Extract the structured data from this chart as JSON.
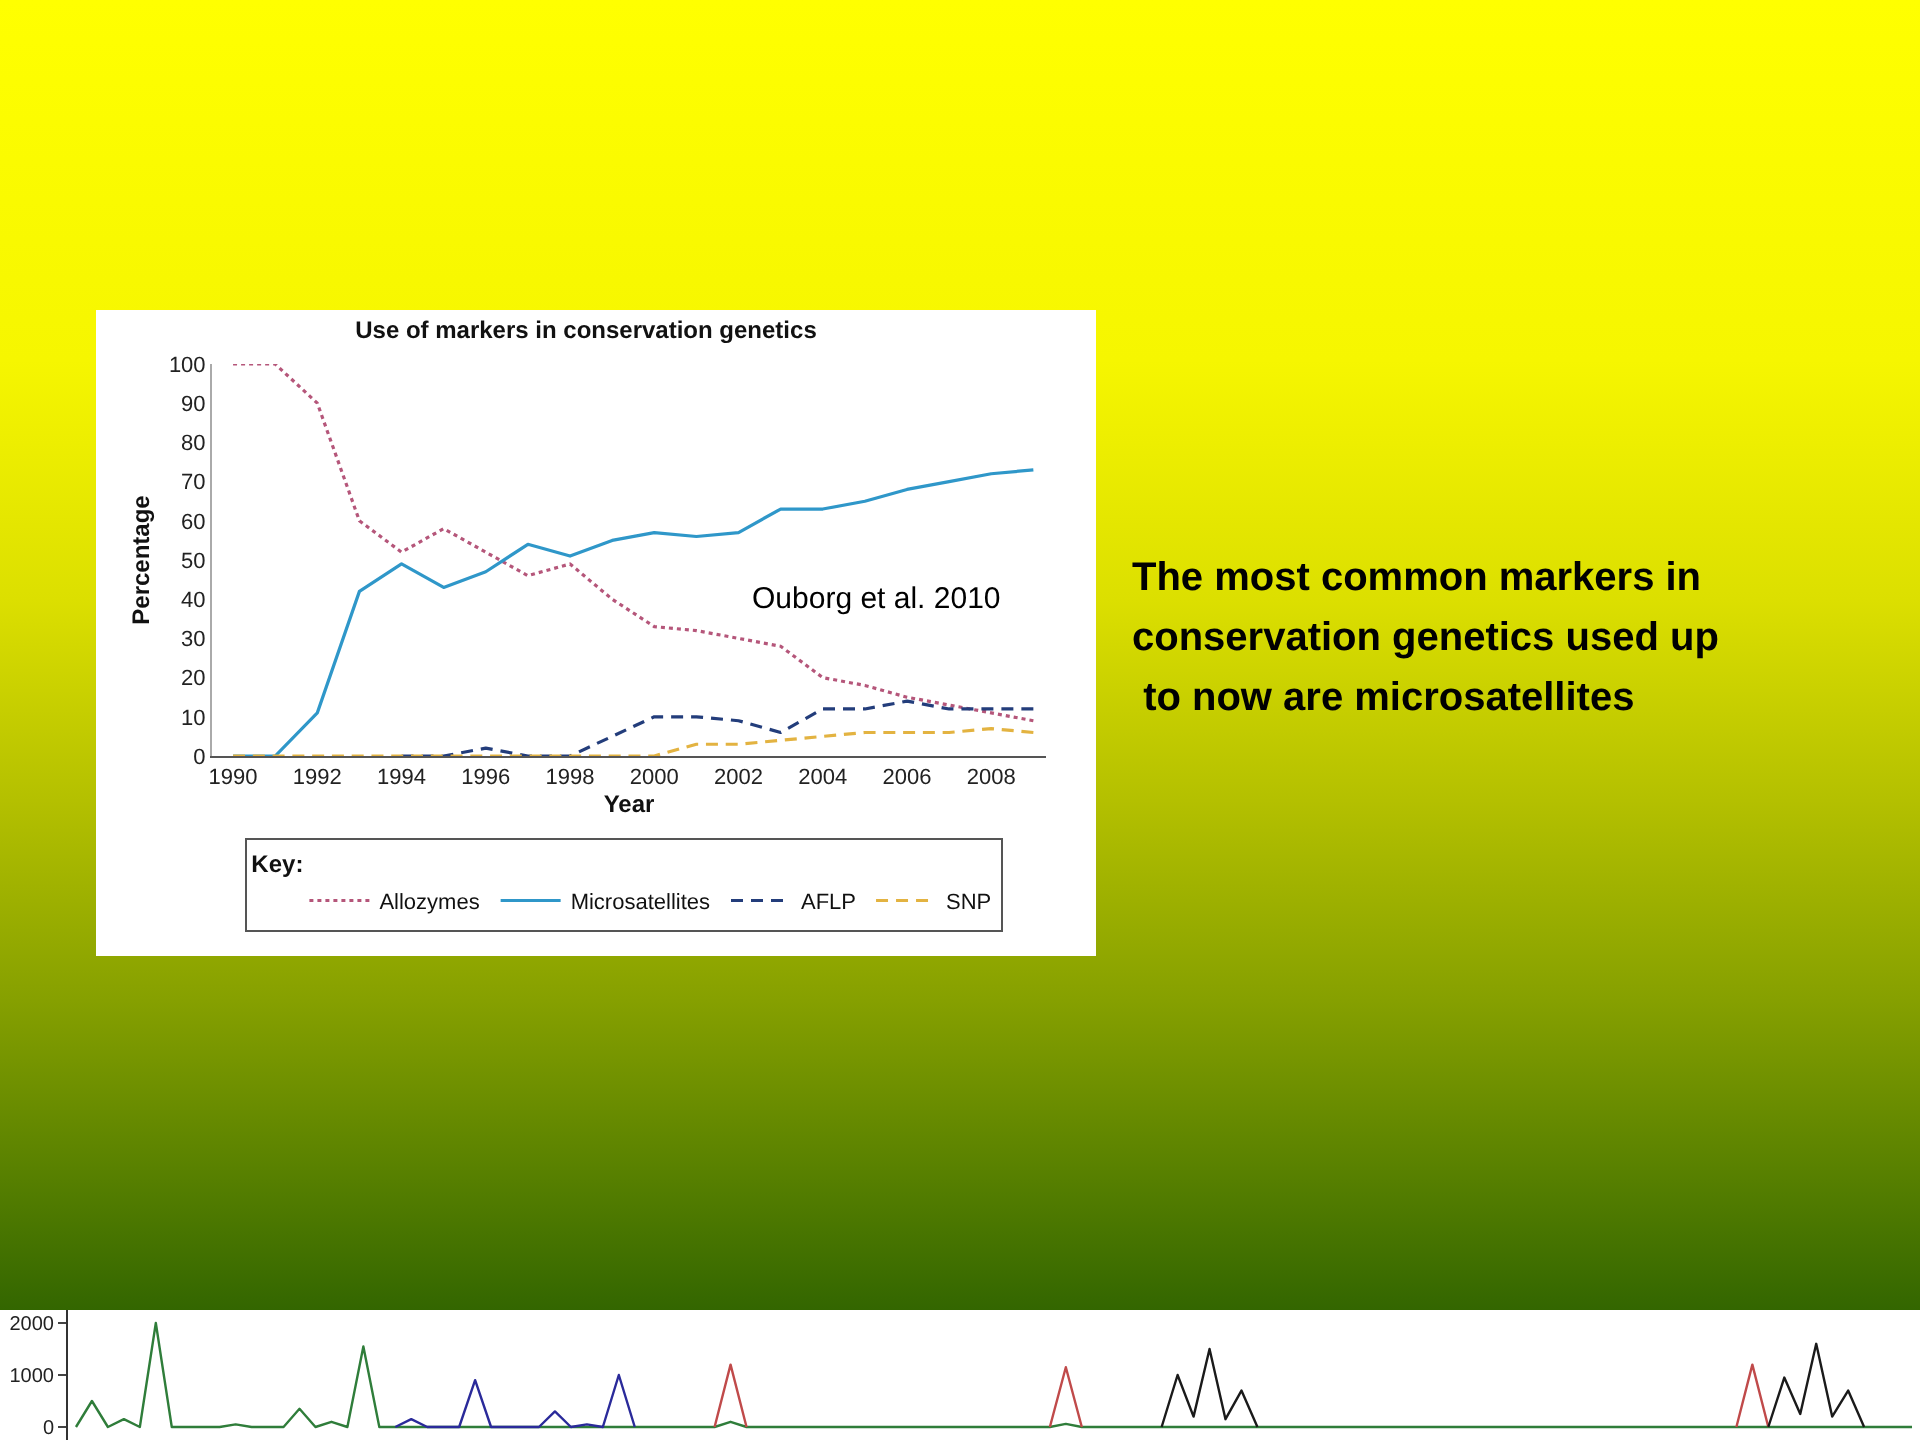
{
  "chart_data": [
    {
      "type": "line",
      "title": "Use of markers in conservation genetics",
      "xlabel": "Year",
      "ylabel": "Percentage",
      "legend_title": "Key:",
      "legend": "bottom",
      "x": [
        1990,
        1991,
        1992,
        1993,
        1994,
        1995,
        1996,
        1997,
        1998,
        1999,
        2000,
        2001,
        2002,
        2003,
        2004,
        2005,
        2006,
        2007,
        2008,
        2009
      ],
      "xlim": [
        1989.5,
        2009.3
      ],
      "xticks": [
        1990,
        1992,
        1994,
        1996,
        1998,
        2000,
        2002,
        2004,
        2006,
        2008
      ],
      "ylim": [
        0,
        100
      ],
      "yticks": [
        0,
        10,
        20,
        30,
        40,
        50,
        60,
        70,
        80,
        90,
        100
      ],
      "series": [
        {
          "name": "Allozymes",
          "color": "#b5567a",
          "line_style": "dotted",
          "values": [
            100,
            100,
            90,
            60,
            52,
            58,
            52,
            46,
            49,
            40,
            33,
            32,
            30,
            28,
            20,
            18,
            15,
            13,
            11,
            9
          ]
        },
        {
          "name": "Microsatellites",
          "color": "#2f97c9",
          "line_style": "solid",
          "values": [
            0,
            0,
            11,
            42,
            49,
            43,
            47,
            54,
            51,
            55,
            57,
            56,
            57,
            63,
            63,
            65,
            68,
            70,
            72,
            73
          ]
        },
        {
          "name": "AFLP",
          "color": "#233d7b",
          "line_style": "dashed",
          "values": [
            null,
            null,
            null,
            null,
            0,
            0,
            2,
            0,
            0,
            5,
            10,
            10,
            9,
            6,
            12,
            12,
            14,
            12,
            12,
            12
          ]
        },
        {
          "name": "SNP",
          "color": "#e3b341",
          "line_style": "dashed",
          "values": [
            0,
            0,
            0,
            0,
            0,
            0,
            0,
            0,
            0,
            0,
            0,
            3,
            3,
            4,
            5,
            6,
            6,
            6,
            7,
            6
          ]
        }
      ],
      "annotations": [
        "Ouborg et al. 2010",
        "The most common markers in\nconservation genetics used up\n to now are microsatellites"
      ]
    },
    {
      "type": "line",
      "tick_labels": "y",
      "line_style": "solid",
      "ylim": [
        -250,
        2250
      ],
      "yticks": [
        0,
        1000,
        2000
      ],
      "categories": [
        null,
        null,
        null,
        null,
        null,
        null,
        null,
        null,
        null,
        null,
        null,
        null,
        null,
        null,
        null,
        null,
        null,
        null,
        null,
        null,
        null,
        null,
        null,
        null,
        null,
        null,
        null,
        null,
        null,
        null,
        null,
        null,
        null,
        null,
        null,
        null,
        null,
        null,
        null,
        null,
        null,
        null,
        null,
        null,
        null,
        null,
        null,
        null,
        null,
        null,
        null,
        null,
        null,
        null,
        null,
        null,
        null,
        null,
        null,
        null,
        null,
        null,
        null,
        null,
        null,
        null,
        null,
        null,
        null,
        null,
        null,
        null,
        null,
        null,
        null,
        null,
        null,
        null,
        null,
        null,
        null,
        null,
        null,
        null,
        null,
        null,
        null,
        null,
        null,
        null,
        null,
        null,
        null,
        null,
        null,
        null,
        null,
        null,
        null,
        null,
        null,
        null,
        null,
        null,
        null,
        null,
        null,
        null,
        null,
        null,
        null,
        null,
        null,
        null,
        null,
        null
      ],
      "series": [
        {
          "color": "#2f7d3a",
          "values": [
            0,
            500,
            0,
            150,
            0,
            2000,
            0,
            0,
            0,
            0,
            50,
            0,
            0,
            0,
            350,
            0,
            100,
            0,
            1550,
            0,
            0,
            0,
            0,
            0,
            0,
            0,
            0,
            0,
            0,
            0,
            0,
            0,
            0,
            0,
            0,
            0,
            0,
            0,
            0,
            0,
            0,
            100,
            0,
            0,
            0,
            0,
            0,
            0,
            0,
            0,
            0,
            0,
            0,
            0,
            0,
            0,
            0,
            0,
            0,
            0,
            0,
            0,
            60,
            0,
            0,
            0,
            0,
            0,
            0,
            0,
            0,
            0,
            0,
            0,
            0,
            0,
            0,
            0,
            0,
            0,
            0,
            0,
            0,
            0,
            0,
            0,
            0,
            0,
            0,
            0,
            0,
            0,
            0,
            0,
            0,
            0,
            0,
            0,
            0,
            0,
            0,
            0,
            0,
            0,
            0,
            0,
            0,
            0,
            0,
            0,
            0,
            0,
            0,
            0,
            0,
            0
          ]
        },
        {
          "color": "#2a2a9a",
          "values": [
            null,
            null,
            null,
            null,
            null,
            null,
            null,
            null,
            null,
            null,
            null,
            null,
            null,
            null,
            null,
            null,
            null,
            null,
            null,
            null,
            0,
            150,
            0,
            0,
            0,
            900,
            0,
            0,
            0,
            0,
            300,
            0,
            50,
            0,
            1000,
            0,
            null,
            null,
            null,
            null,
            null,
            null,
            null,
            null,
            null,
            null,
            null,
            null,
            null,
            null,
            null,
            null,
            null,
            null,
            null,
            null,
            null,
            null,
            null,
            null,
            null,
            null,
            null,
            null,
            null,
            null,
            null,
            null,
            null,
            null,
            null,
            null,
            null,
            null,
            null,
            null,
            null,
            null,
            null,
            null,
            null,
            null,
            null,
            null,
            null,
            null,
            null,
            null,
            null,
            null,
            null,
            null,
            null,
            null,
            null,
            null,
            null,
            null,
            null,
            null,
            null,
            null,
            null,
            null,
            null,
            null,
            null,
            null,
            null,
            null,
            null,
            null,
            null,
            null,
            null,
            null
          ]
        },
        {
          "color": "#c04a4a",
          "values": [
            null,
            null,
            null,
            null,
            null,
            null,
            null,
            null,
            null,
            null,
            null,
            null,
            null,
            null,
            null,
            null,
            null,
            null,
            null,
            null,
            null,
            null,
            null,
            null,
            null,
            null,
            null,
            null,
            null,
            null,
            null,
            null,
            null,
            null,
            null,
            null,
            null,
            null,
            null,
            null,
            0,
            1200,
            0,
            null,
            null,
            null,
            null,
            null,
            null,
            null,
            null,
            null,
            null,
            null,
            null,
            null,
            null,
            null,
            null,
            null,
            null,
            0,
            1150,
            0,
            null,
            null,
            null,
            null,
            null,
            null,
            null,
            null,
            null,
            null,
            null,
            null,
            null,
            null,
            null,
            null,
            null,
            null,
            null,
            null,
            null,
            null,
            null,
            null,
            null,
            null,
            null,
            null,
            null,
            null,
            null,
            null,
            null,
            null,
            null,
            null,
            null,
            null,
            null,
            null,
            0,
            1200,
            0,
            null,
            null,
            null,
            null,
            null,
            null,
            null,
            null,
            null
          ]
        },
        {
          "color": "#1a1a1a",
          "values": [
            null,
            null,
            null,
            null,
            null,
            null,
            null,
            null,
            null,
            null,
            null,
            null,
            null,
            null,
            null,
            null,
            null,
            null,
            null,
            null,
            null,
            null,
            null,
            null,
            null,
            null,
            null,
            null,
            null,
            null,
            null,
            null,
            null,
            null,
            null,
            null,
            null,
            null,
            null,
            null,
            null,
            null,
            null,
            null,
            null,
            null,
            null,
            null,
            null,
            null,
            null,
            null,
            null,
            null,
            null,
            null,
            null,
            null,
            null,
            null,
            null,
            null,
            null,
            null,
            null,
            null,
            null,
            null,
            0,
            1000,
            200,
            1500,
            150,
            700,
            0,
            null,
            null,
            null,
            null,
            null,
            null,
            null,
            null,
            null,
            null,
            null,
            null,
            null,
            null,
            null,
            null,
            null,
            null,
            null,
            null,
            null,
            null,
            null,
            null,
            null,
            null,
            null,
            null,
            null,
            null,
            null,
            0,
            950,
            250,
            1600,
            200,
            700,
            0,
            null,
            null,
            null
          ]
        }
      ]
    }
  ]
}
